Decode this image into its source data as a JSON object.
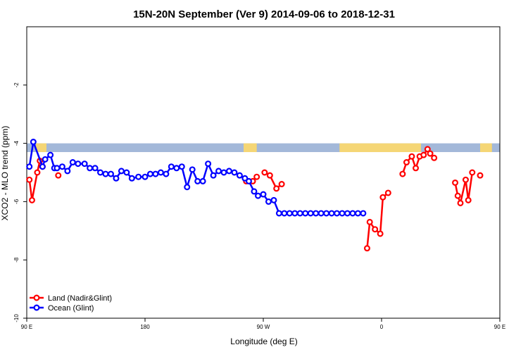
{
  "chart_data": {
    "type": "line",
    "title": "15N-20N September (Ver 9)   2014-09-06 to 2018-12-31",
    "xlabel": "Longitude (deg E)",
    "ylabel": "XCO2 - MLO trend (ppm)",
    "xlim": [
      90,
      450
    ],
    "ylim": [
      -10,
      0
    ],
    "x_ticks": [
      {
        "value": 90,
        "label": "90 E"
      },
      {
        "value": 180,
        "label": "180"
      },
      {
        "value": 270,
        "label": "90 W"
      },
      {
        "value": 360,
        "label": "0"
      },
      {
        "value": 450,
        "label": "90 E"
      },
      {
        "value": 540,
        "label": "180"
      }
    ],
    "y_ticks": [
      {
        "value": -2,
        "label": "-2"
      },
      {
        "value": -4,
        "label": "-4"
      },
      {
        "value": -6,
        "label": "-6"
      },
      {
        "value": -8,
        "label": "-8"
      },
      {
        "value": -10,
        "label": "-10"
      }
    ],
    "legend_position": "bottom-left",
    "map_strip": {
      "y_range": [
        -4.3,
        -4.0
      ],
      "ocean_color": "#a3b8d9",
      "land_color": "#f5d675",
      "land_ranges": [
        [
          97,
          105
        ],
        [
          255,
          265
        ],
        [
          328,
          390
        ],
        [
          435,
          444
        ],
        [
          455,
          460
        ]
      ]
    },
    "series": [
      {
        "name": "Land (Nadir&Glint)",
        "color": "#ff0000",
        "segments": [
          {
            "x": [
              92,
              94,
              98,
              100,
              102
            ],
            "y": [
              -5.25,
              -5.95,
              -5.0,
              -4.6,
              -4.8
            ]
          },
          {
            "x": [
              114
            ],
            "y": [
              -5.1
            ]
          },
          {
            "x": [
              257,
              262,
              265
            ],
            "y": [
              -5.3,
              -5.3,
              -5.15
            ]
          },
          {
            "x": [
              271,
              275,
              280,
              284
            ],
            "y": [
              -5.0,
              -5.1,
              -5.55,
              -5.4
            ]
          },
          {
            "x": [
              349,
              351,
              355,
              359,
              361,
              365
            ],
            "y": [
              -7.6,
              -6.7,
              -6.95,
              -7.1,
              -5.85,
              -5.7
            ]
          },
          {
            "x": [
              376,
              379,
              383,
              386,
              389,
              392,
              395,
              397,
              400
            ],
            "y": [
              -5.05,
              -4.65,
              -4.45,
              -4.85,
              -4.45,
              -4.4,
              -4.2,
              -4.35,
              -4.5
            ]
          },
          {
            "x": [
              416,
              418,
              420,
              424,
              426,
              429
            ],
            "y": [
              -5.35,
              -5.8,
              -6.05,
              -5.25,
              -5.95,
              -5.0
            ]
          },
          {
            "x": [
              435
            ],
            "y": [
              -5.1
            ]
          }
        ]
      },
      {
        "name": "Ocean (Glint)",
        "color": "#0000ff",
        "segments": [
          {
            "x": [
              92,
              95,
              102,
              104,
              108,
              111,
              113,
              117,
              121,
              125,
              129,
              134,
              138,
              142,
              146,
              150,
              154,
              158,
              162,
              166,
              170,
              175,
              180,
              184,
              188,
              192,
              196,
              200,
              204,
              208,
              212,
              216,
              220,
              224,
              228,
              232,
              236,
              240,
              244,
              248,
              252,
              256,
              259,
              263,
              266,
              270,
              274,
              278,
              282,
              286,
              290,
              294,
              298,
              302,
              306,
              310,
              314,
              318,
              322,
              326,
              330,
              334,
              338,
              342,
              346
            ],
            "y": [
              -4.8,
              -3.95,
              -4.8,
              -4.55,
              -4.4,
              -4.85,
              -4.85,
              -4.8,
              -4.95,
              -4.65,
              -4.7,
              -4.7,
              -4.85,
              -4.85,
              -5.0,
              -5.05,
              -5.05,
              -5.2,
              -4.95,
              -5.0,
              -5.2,
              -5.15,
              -5.15,
              -5.05,
              -5.05,
              -5.0,
              -5.05,
              -4.8,
              -4.85,
              -4.8,
              -5.5,
              -4.9,
              -5.3,
              -5.3,
              -4.7,
              -5.1,
              -4.95,
              -5.0,
              -4.95,
              -5.0,
              -5.1,
              -5.2,
              -5.3,
              -5.65,
              -5.8,
              -5.75,
              -6.0,
              -5.95,
              -6.4,
              -6.4,
              -6.4,
              -6.4,
              -6.4,
              -6.4,
              -6.4,
              -6.4,
              -6.4,
              -6.4,
              -6.4,
              -6.4,
              -6.4,
              -6.4,
              -6.4,
              -6.4,
              -6.4
            ]
          }
        ]
      }
    ]
  }
}
